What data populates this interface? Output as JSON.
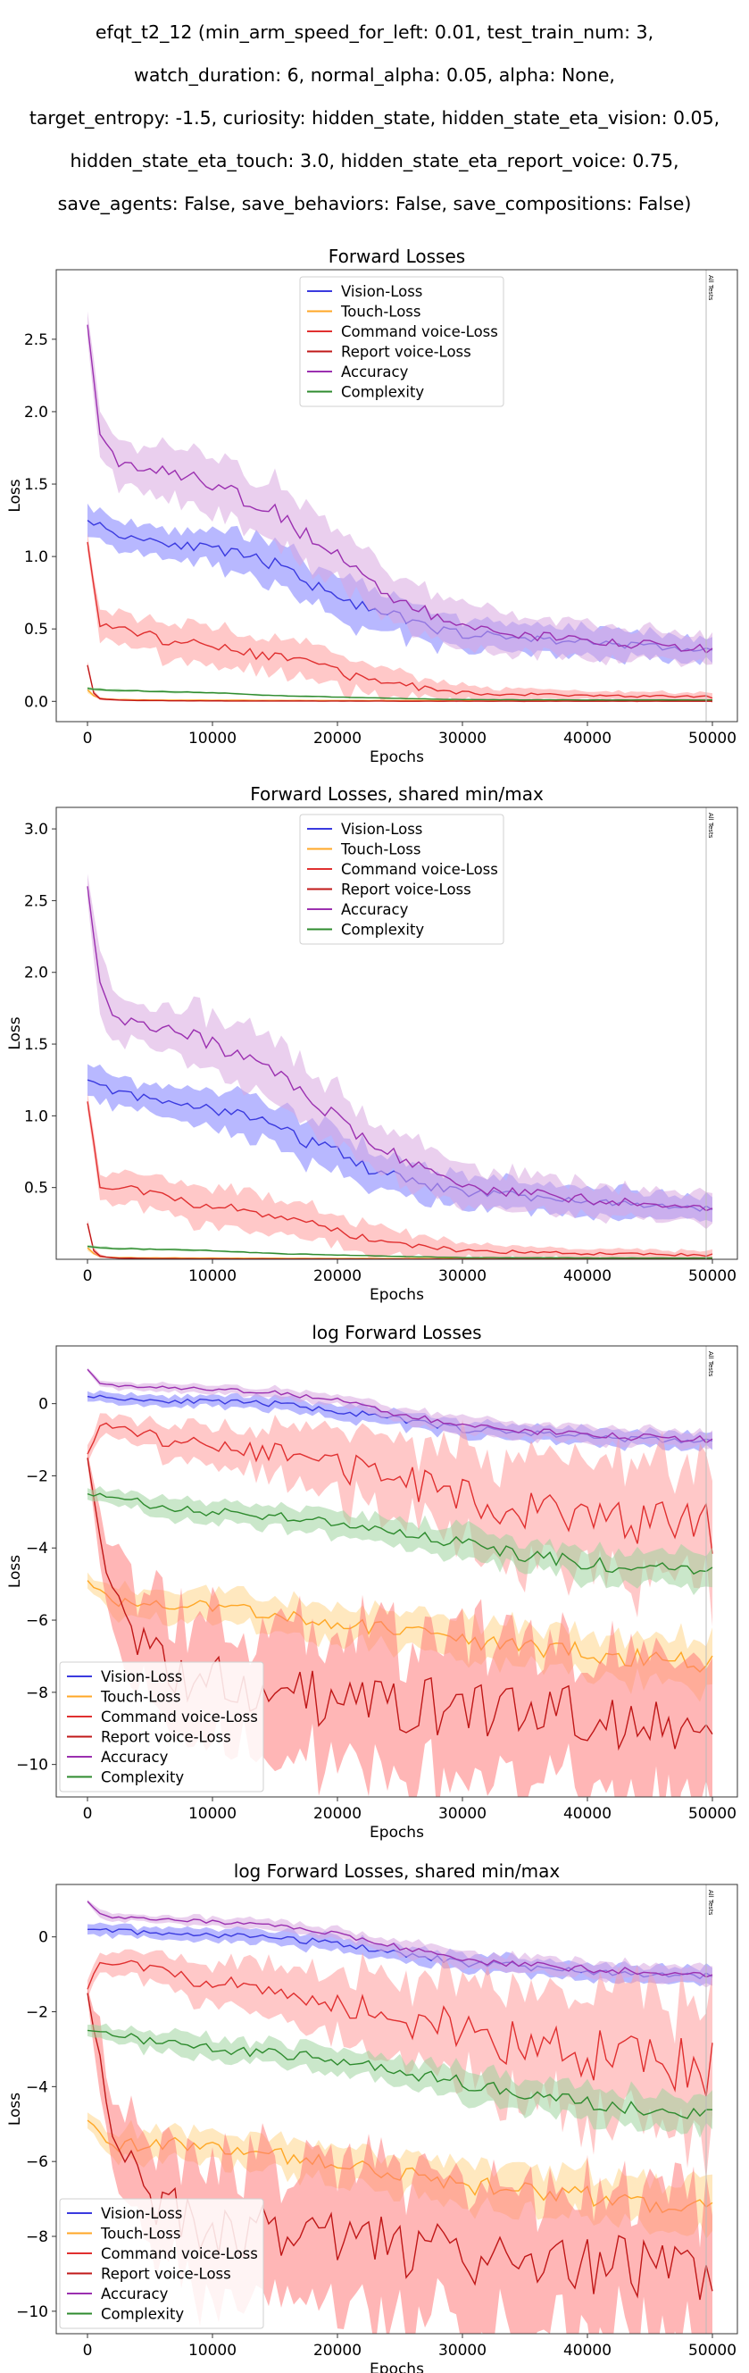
{
  "figure": {
    "suptitle_lines": [
      "efqt_t2_12 (min_arm_speed_for_left: 0.01, test_train_num: 3,",
      "watch_duration: 6, normal_alpha: 0.05, alpha: None,",
      "target_entropy: -1.5, curiosity: hidden_state, hidden_state_eta_vision: 0.05,",
      "hidden_state_eta_touch: 3.0, hidden_state_eta_report_voice: 0.75,",
      "save_agents: False, save_behaviors: False, save_compositions: False)"
    ]
  },
  "chart_data": [
    {
      "type": "line",
      "title": "Forward Losses",
      "xlabel": "Epochs",
      "ylabel": "Loss",
      "xlim": [
        -2500,
        52000
      ],
      "ylim": [
        -0.14,
        2.98
      ],
      "xticks": [
        0,
        10000,
        20000,
        30000,
        40000,
        50000
      ],
      "yticks": [
        0.0,
        0.5,
        1.0,
        1.5,
        2.0,
        2.5
      ],
      "ytick_labels": [
        "0.0",
        "0.5",
        "1.0",
        "1.5",
        "2.0",
        "2.5"
      ],
      "vline": {
        "x": 49500,
        "label": "All Tests"
      },
      "legend_position": "upper-center",
      "series": [
        {
          "name": "Vision-Loss",
          "color": "#3a3adf",
          "fill": "#7d7dff",
          "x": [
            0,
            2500,
            5000,
            7500,
            10000,
            12500,
            15000,
            17500,
            20000,
            22500,
            25000,
            27500,
            30000,
            32500,
            35000,
            37500,
            40000,
            42500,
            45000,
            47500,
            50000
          ],
          "y": [
            1.25,
            1.15,
            1.12,
            1.08,
            1.05,
            1.0,
            0.95,
            0.82,
            0.75,
            0.62,
            0.58,
            0.5,
            0.47,
            0.45,
            0.44,
            0.42,
            0.41,
            0.4,
            0.38,
            0.36,
            0.35
          ],
          "band": [
            0.12,
            0.1,
            0.1,
            0.1,
            0.12,
            0.14,
            0.14,
            0.14,
            0.15,
            0.14,
            0.13,
            0.12,
            0.11,
            0.1,
            0.1,
            0.1,
            0.1,
            0.1,
            0.09,
            0.08,
            0.08
          ]
        },
        {
          "name": "Touch-Loss",
          "color": "#ffa726",
          "fill": "#ffd58a",
          "x": [
            0,
            500,
            1000,
            2500,
            5000,
            10000,
            20000,
            30000,
            40000,
            50000
          ],
          "y": [
            0.08,
            0.04,
            0.02,
            0.012,
            0.01,
            0.008,
            0.006,
            0.005,
            0.005,
            0.004
          ],
          "band": [
            0.02,
            0.01,
            0.005,
            0.004,
            0.003,
            0.003,
            0.002,
            0.002,
            0.002,
            0.002
          ]
        },
        {
          "name": "Command voice-Loss",
          "color": "#e03030",
          "fill": "#ff9a9a",
          "x": [
            0,
            1000,
            2500,
            5000,
            7500,
            10000,
            12500,
            15000,
            17500,
            20000,
            22500,
            25000,
            27500,
            30000,
            35000,
            40000,
            45000,
            50000
          ],
          "y": [
            1.1,
            0.52,
            0.5,
            0.45,
            0.4,
            0.38,
            0.34,
            0.3,
            0.28,
            0.2,
            0.14,
            0.12,
            0.08,
            0.06,
            0.05,
            0.04,
            0.035,
            0.03
          ],
          "band": [
            0.05,
            0.1,
            0.11,
            0.12,
            0.13,
            0.13,
            0.13,
            0.12,
            0.12,
            0.11,
            0.1,
            0.09,
            0.07,
            0.05,
            0.04,
            0.03,
            0.03,
            0.03
          ]
        },
        {
          "name": "Report voice-Loss",
          "color": "#c01818",
          "fill": "#ff7a7a",
          "x": [
            0,
            500,
            1000,
            2500,
            5000,
            10000,
            20000,
            30000,
            40000,
            50000
          ],
          "y": [
            0.25,
            0.06,
            0.02,
            0.008,
            0.005,
            0.003,
            0.002,
            0.001,
            0.001,
            0.001
          ],
          "band": [
            0.03,
            0.02,
            0.01,
            0.004,
            0.003,
            0.002,
            0.002,
            0.001,
            0.001,
            0.001
          ]
        },
        {
          "name": "Accuracy",
          "color": "#9b30b0",
          "fill": "#d8a8e0",
          "x": [
            0,
            1000,
            2500,
            5000,
            7500,
            10000,
            12500,
            15000,
            17500,
            20000,
            22500,
            25000,
            27500,
            30000,
            32500,
            35000,
            37500,
            40000,
            42500,
            45000,
            47500,
            50000
          ],
          "y": [
            2.6,
            1.9,
            1.65,
            1.62,
            1.58,
            1.5,
            1.4,
            1.3,
            1.15,
            1.0,
            0.82,
            0.7,
            0.6,
            0.52,
            0.48,
            0.46,
            0.44,
            0.42,
            0.4,
            0.39,
            0.37,
            0.36
          ],
          "band": [
            0.1,
            0.2,
            0.15,
            0.15,
            0.18,
            0.2,
            0.2,
            0.2,
            0.2,
            0.2,
            0.18,
            0.17,
            0.15,
            0.14,
            0.14,
            0.13,
            0.12,
            0.12,
            0.1,
            0.1,
            0.1,
            0.1
          ]
        },
        {
          "name": "Complexity",
          "color": "#2e8b2e",
          "fill": "#9ed39e",
          "x": [
            0,
            1000,
            2500,
            5000,
            10000,
            15000,
            20000,
            25000,
            30000,
            40000,
            50000
          ],
          "y": [
            0.09,
            0.08,
            0.075,
            0.07,
            0.06,
            0.04,
            0.03,
            0.02,
            0.012,
            0.01,
            0.009
          ],
          "band": [
            0.01,
            0.01,
            0.01,
            0.008,
            0.007,
            0.006,
            0.005,
            0.004,
            0.003,
            0.003,
            0.003
          ]
        }
      ]
    },
    {
      "type": "line",
      "title": "Forward Losses, shared min/max",
      "xlabel": "Epochs",
      "ylabel": "Loss",
      "xlim": [
        -2500,
        52000
      ],
      "ylim": [
        0.0,
        3.15
      ],
      "xticks": [
        0,
        10000,
        20000,
        30000,
        40000,
        50000
      ],
      "yticks": [
        0.5,
        1.0,
        1.5,
        2.0,
        2.5,
        3.0
      ],
      "ytick_labels": [
        "0.5",
        "1.0",
        "1.5",
        "2.0",
        "2.5",
        "3.0"
      ],
      "vline": {
        "x": 49500,
        "label": "All Tests"
      },
      "legend_position": "upper-center",
      "same_series_as_panel": 0
    },
    {
      "type": "line",
      "title": "log Forward Losses",
      "xlabel": "Epochs",
      "ylabel": "Loss",
      "xlim": [
        -2500,
        52000
      ],
      "ylim": [
        -10.9,
        1.6
      ],
      "xticks": [
        0,
        10000,
        20000,
        30000,
        40000,
        50000
      ],
      "yticks": [
        -10,
        -8,
        -6,
        -4,
        -2,
        0
      ],
      "ytick_labels": [
        "−10",
        "−8",
        "−6",
        "−4",
        "−2",
        "0"
      ],
      "vline": {
        "x": 49500,
        "label": "All Tests"
      },
      "legend_position": "lower-left",
      "series": [
        {
          "name": "Vision-Loss",
          "color": "#3a3adf",
          "fill": "#7d7dff",
          "x": [
            0,
            5000,
            10000,
            15000,
            20000,
            25000,
            30000,
            35000,
            40000,
            45000,
            50000
          ],
          "y": [
            0.2,
            0.1,
            0.05,
            0.0,
            -0.2,
            -0.45,
            -0.7,
            -0.8,
            -0.9,
            -1.0,
            -1.05
          ],
          "band": [
            0.15,
            0.15,
            0.15,
            0.18,
            0.2,
            0.22,
            0.22,
            0.22,
            0.22,
            0.22,
            0.22
          ]
        },
        {
          "name": "Touch-Loss",
          "color": "#ffa726",
          "fill": "#ffd58a",
          "x": [
            0,
            1000,
            2500,
            5000,
            10000,
            15000,
            20000,
            25000,
            30000,
            35000,
            40000,
            45000,
            50000
          ],
          "y": [
            -4.9,
            -5.2,
            -5.6,
            -5.5,
            -5.6,
            -5.8,
            -6.1,
            -6.3,
            -6.6,
            -6.8,
            -6.9,
            -7.1,
            -7.2
          ],
          "band": [
            0.2,
            0.3,
            0.4,
            0.4,
            0.4,
            0.45,
            0.5,
            0.5,
            0.55,
            0.6,
            0.6,
            0.65,
            0.7
          ]
        },
        {
          "name": "Command voice-Loss",
          "color": "#e03030",
          "fill": "#ff9a9a",
          "x": [
            0,
            1000,
            2500,
            5000,
            7500,
            10000,
            12500,
            15000,
            17500,
            20000,
            22500,
            25000,
            27500,
            30000,
            32500,
            35000,
            37500,
            40000,
            42500,
            45000,
            47500,
            50000
          ],
          "y": [
            -1.4,
            -0.6,
            -0.7,
            -0.9,
            -1.1,
            -1.2,
            -1.3,
            -1.4,
            -1.6,
            -1.8,
            -1.9,
            -2.2,
            -2.3,
            -2.5,
            -2.7,
            -2.9,
            -3.0,
            -3.1,
            -3.2,
            -3.3,
            -3.4,
            -3.5
          ],
          "band": [
            0.2,
            0.3,
            0.3,
            0.4,
            0.5,
            0.5,
            0.6,
            0.7,
            0.8,
            0.9,
            1.0,
            1.1,
            1.2,
            1.3,
            1.4,
            1.5,
            1.5,
            1.6,
            1.6,
            1.7,
            1.7,
            1.8
          ]
        },
        {
          "name": "Report voice-Loss",
          "color": "#c01818",
          "fill": "#ff7a7a",
          "x": [
            0,
            1000,
            2500,
            5000,
            7500,
            10000,
            12500,
            15000,
            17500,
            20000,
            22500,
            25000,
            27500,
            30000,
            32500,
            35000,
            37500,
            40000,
            42500,
            45000,
            47500,
            50000
          ],
          "y": [
            -1.5,
            -3.5,
            -5.8,
            -7.0,
            -7.5,
            -7.7,
            -7.8,
            -8.0,
            -8.1,
            -8.2,
            -8.2,
            -8.3,
            -8.4,
            -8.5,
            -8.5,
            -8.6,
            -8.6,
            -8.7,
            -8.7,
            -8.8,
            -8.8,
            -8.9
          ],
          "band": [
            0.2,
            0.8,
            1.2,
            1.5,
            1.6,
            1.7,
            1.7,
            1.8,
            1.8,
            1.8,
            1.9,
            1.9,
            1.9,
            1.9,
            1.9,
            1.9,
            1.9,
            1.9,
            1.9,
            1.9,
            1.9,
            1.9
          ]
        },
        {
          "name": "Accuracy",
          "color": "#9b30b0",
          "fill": "#d8a8e0",
          "x": [
            0,
            1000,
            2500,
            5000,
            10000,
            15000,
            20000,
            25000,
            30000,
            35000,
            40000,
            45000,
            50000
          ],
          "y": [
            0.95,
            0.6,
            0.5,
            0.48,
            0.4,
            0.3,
            0.1,
            -0.3,
            -0.6,
            -0.75,
            -0.85,
            -0.95,
            -1.0
          ],
          "band": [
            0.05,
            0.1,
            0.1,
            0.1,
            0.12,
            0.13,
            0.15,
            0.2,
            0.22,
            0.22,
            0.22,
            0.22,
            0.22
          ]
        },
        {
          "name": "Complexity",
          "color": "#2e8b2e",
          "fill": "#9ed39e",
          "x": [
            0,
            2500,
            5000,
            10000,
            15000,
            20000,
            25000,
            30000,
            35000,
            40000,
            45000,
            50000
          ],
          "y": [
            -2.5,
            -2.6,
            -2.8,
            -3.0,
            -3.1,
            -3.3,
            -3.6,
            -3.9,
            -4.2,
            -4.4,
            -4.6,
            -4.7
          ],
          "band": [
            0.15,
            0.2,
            0.25,
            0.3,
            0.3,
            0.35,
            0.35,
            0.4,
            0.4,
            0.45,
            0.45,
            0.5
          ]
        }
      ]
    },
    {
      "type": "line",
      "title": "log Forward Losses, shared min/max",
      "xlabel": "Epochs",
      "ylabel": "Loss",
      "xlim": [
        -2500,
        52000
      ],
      "ylim": [
        -10.6,
        1.4
      ],
      "xticks": [
        0,
        10000,
        20000,
        30000,
        40000,
        50000
      ],
      "yticks": [
        -10,
        -8,
        -6,
        -4,
        -2,
        0
      ],
      "ytick_labels": [
        "−10",
        "−8",
        "−6",
        "−4",
        "−2",
        "0"
      ],
      "vline": {
        "x": 49500,
        "label": "All Tests"
      },
      "legend_position": "lower-left",
      "same_series_as_panel": 2
    }
  ]
}
